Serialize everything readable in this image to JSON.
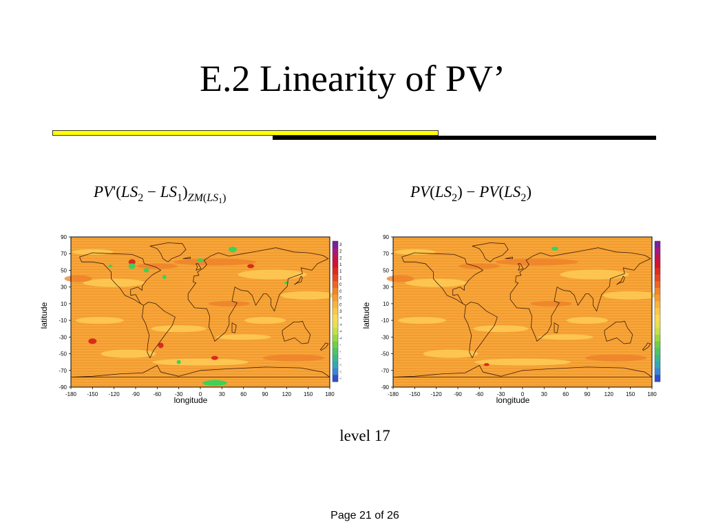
{
  "slide": {
    "title": "E.2 Linearity of PV’",
    "caption": "level 17",
    "page": "Page 21 of 26"
  },
  "formulas": {
    "left": {
      "pv": "PV",
      "prime_open": "'(",
      "ls": "LS",
      "two": "2",
      "minus": " − ",
      "ls1": "LS",
      "one": "1",
      "close": ")",
      "zm": "ZM",
      "open2": "(",
      "ls3": "LS",
      "one2": "1",
      "close2": ")"
    },
    "right": {
      "pv1": "PV",
      "open1": "(",
      "ls1": "LS",
      "two1": "2",
      "close1": ")",
      "minus": " − ",
      "pv2": "PV",
      "open2": "(",
      "ls2": "LS",
      "two2": "2",
      "close2": ")"
    }
  },
  "colors": {
    "rule_yellow": "#ffff00",
    "rule_black": "#000000",
    "field_orange": "#f5a335",
    "field_light": "#ffd25a",
    "field_dark": "#ee7d2a",
    "field_red": "#d92b1e",
    "field_green": "#3ad25b"
  },
  "chart_data": [
    {
      "type": "heatmap",
      "name": "PV'(LS2 − LS1)_ZM(LS1)",
      "xlabel": "longitude",
      "ylabel": "latitude",
      "xlim": [
        -180,
        180
      ],
      "ylim": [
        -90,
        90
      ],
      "xticks": [
        "-180",
        "-150",
        "-120",
        "-90",
        "-60",
        "-30",
        "0",
        "30",
        "60",
        "90",
        "120",
        "150",
        "180"
      ],
      "yticks": [
        "90",
        "70",
        "50",
        "30",
        "10",
        "-10",
        "-30",
        "-50",
        "-70",
        "-90"
      ],
      "colorbar_ticks": [
        "3",
        "2.6",
        "2.2",
        "1.8",
        "1.4",
        "1",
        "0.8",
        "0.6",
        "0.4",
        "0.2",
        "3.87438e-07",
        "-0.2",
        "-0.4",
        "-0.6",
        "-0.8",
        "-1",
        "-1.4",
        "-1.8",
        "-2.2",
        "-2.6",
        "-3"
      ],
      "colorbar_colors": [
        "#7a1f9c",
        "#a4187f",
        "#c4124a",
        "#d3152a",
        "#df2a20",
        "#e8451c",
        "#ef6520",
        "#f48426",
        "#f79b2e",
        "#fab33a",
        "#fcc648",
        "#fbd953",
        "#e6e04c",
        "#c6e048",
        "#9bd840",
        "#6fcf45",
        "#4fc464",
        "#3ab88d",
        "#33a7b8",
        "#3a86d3",
        "#2f4fd0"
      ]
    },
    {
      "type": "heatmap",
      "name": "PV(LS2) − PV(LS2)",
      "xlabel": "longitude",
      "ylabel": "latitude",
      "xlim": [
        -180,
        180
      ],
      "ylim": [
        -90,
        90
      ],
      "xticks": [
        "-180",
        "-150",
        "-120",
        "-90",
        "-60",
        "-30",
        "0",
        "30",
        "60",
        "90",
        "120",
        "150",
        "180"
      ],
      "yticks": [
        "90",
        "70",
        "50",
        "30",
        "10",
        "-10",
        "-30",
        "-50",
        "-70",
        "-90"
      ],
      "colorbar_ticks": [],
      "colorbar_colors": [
        "#7a1f9c",
        "#a4187f",
        "#c4124a",
        "#d3152a",
        "#df2a20",
        "#e8451c",
        "#ef6520",
        "#f48426",
        "#f79b2e",
        "#fab33a",
        "#fcc648",
        "#fbd953",
        "#e6e04c",
        "#c6e048",
        "#9bd840",
        "#6fcf45",
        "#4fc464",
        "#3ab88d",
        "#33a7b8",
        "#3a86d3",
        "#2f4fd0"
      ]
    }
  ]
}
